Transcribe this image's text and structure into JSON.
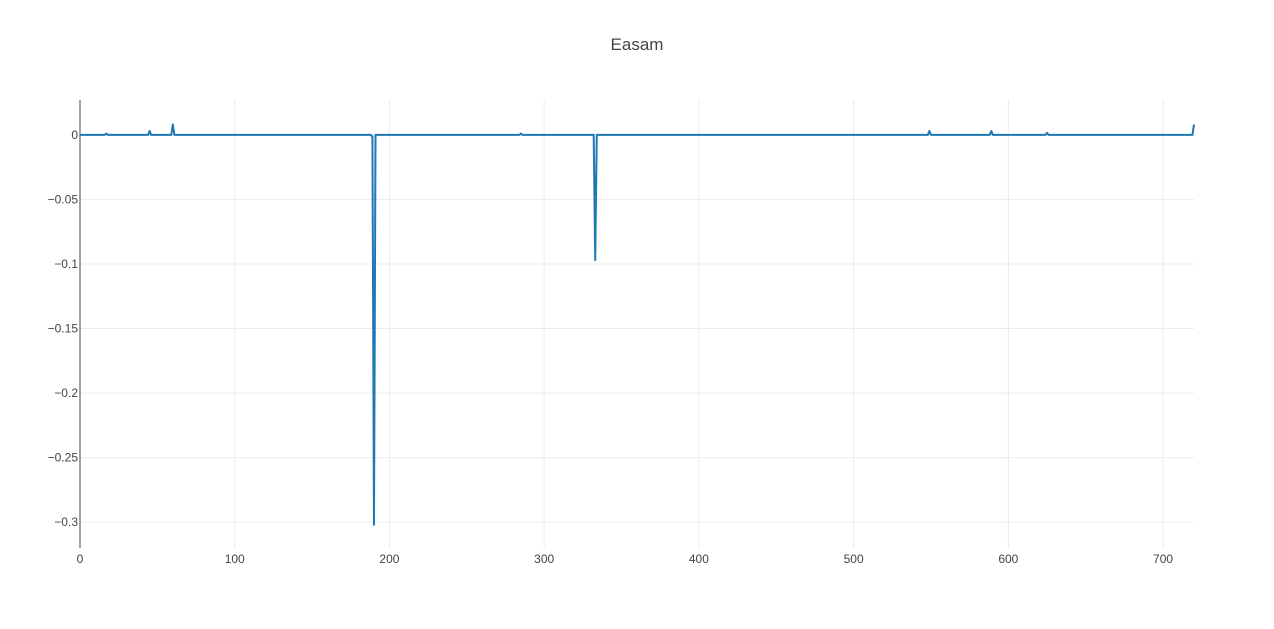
{
  "chart_data": {
    "type": "line",
    "title": "Easam",
    "xlabel": "",
    "ylabel": "",
    "xlim": [
      0,
      720
    ],
    "ylim": [
      -0.32,
      0.027
    ],
    "x_ticks": [
      0,
      100,
      200,
      300,
      400,
      500,
      600,
      700
    ],
    "y_ticks": [
      0,
      -0.05,
      -0.1,
      -0.15,
      -0.2,
      -0.25,
      -0.3
    ],
    "y_tick_labels": [
      "0",
      "−0.05",
      "−0.1",
      "−0.15",
      "−0.2",
      "−0.25",
      "−0.3"
    ],
    "grid": true,
    "color": "#1f77b4",
    "series": [
      {
        "x": [
          0,
          16,
          17,
          18,
          44,
          45,
          46,
          59,
          60,
          61,
          188,
          189,
          190,
          191,
          284,
          285,
          286,
          332,
          333,
          334,
          548,
          549,
          550,
          588,
          589,
          590,
          624,
          625,
          626,
          718,
          719,
          720
        ],
        "y": [
          0,
          0,
          0.001,
          0,
          0,
          0.003,
          0,
          0,
          0.008,
          0,
          0,
          -0.0015,
          -0.302,
          0,
          0,
          0.001,
          0,
          0,
          -0.097,
          0,
          0,
          0.003,
          0,
          0,
          0.003,
          0,
          0,
          0.0015,
          0,
          0,
          0,
          0.008
        ]
      }
    ]
  }
}
